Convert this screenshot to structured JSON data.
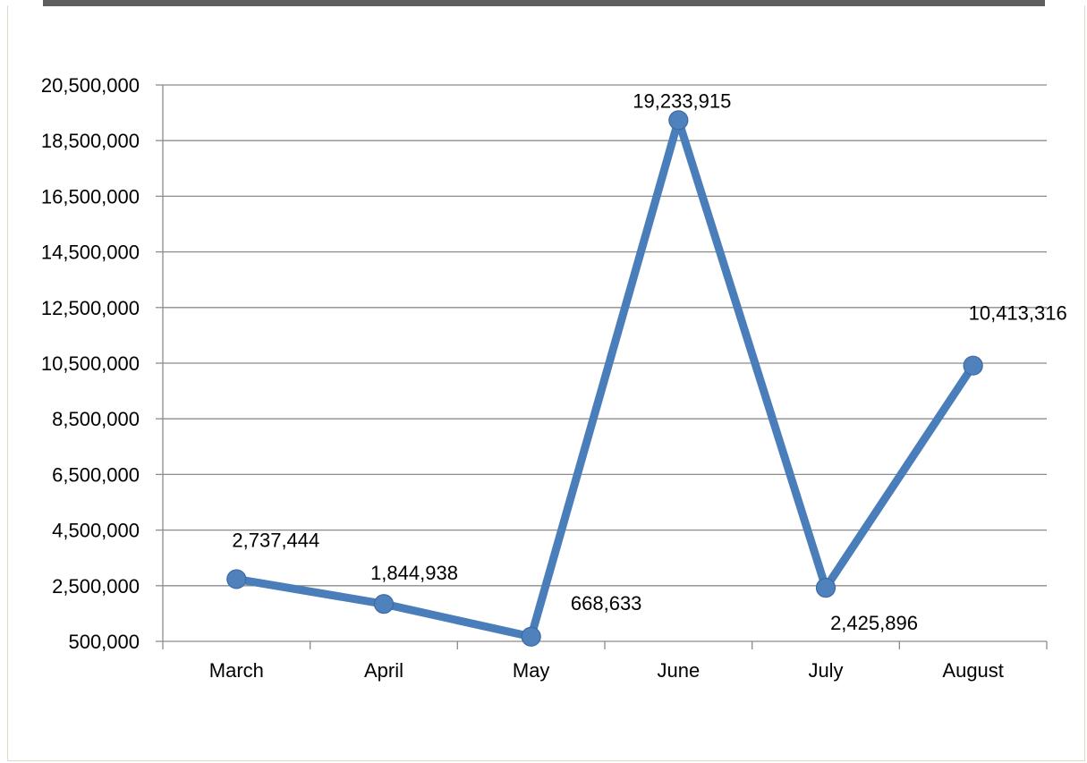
{
  "chart_data": {
    "type": "line",
    "categories": [
      "March",
      "April",
      "May",
      "June",
      "July",
      "August"
    ],
    "series": [
      {
        "values": [
          2737444,
          1844938,
          668633,
          19233915,
          2425896,
          10413316
        ],
        "data_labels": [
          "2,737,444",
          "1,844,938",
          "668,633",
          "19,233,915",
          "2,425,896",
          "10,413,316"
        ]
      }
    ],
    "y_ticks": [
      500000,
      2500000,
      4500000,
      6500000,
      8500000,
      10500000,
      12500000,
      14500000,
      16500000,
      18500000,
      20500000
    ],
    "y_tick_labels": [
      "500,000",
      "2,500,000",
      "4,500,000",
      "6,500,000",
      "8,500,000",
      "10,500,000",
      "12,500,000",
      "14,500,000",
      "16,500,000",
      "18,500,000",
      "20,500,000"
    ],
    "ylim": [
      500000,
      20500000
    ],
    "grid": true,
    "legend": "none",
    "title": "",
    "xlabel": "",
    "ylabel": "",
    "colors": {
      "line": "#4a7ebb",
      "marker": "#4f81bd",
      "grid": "#8c8c8c",
      "axis": "#8c8c8c"
    }
  }
}
